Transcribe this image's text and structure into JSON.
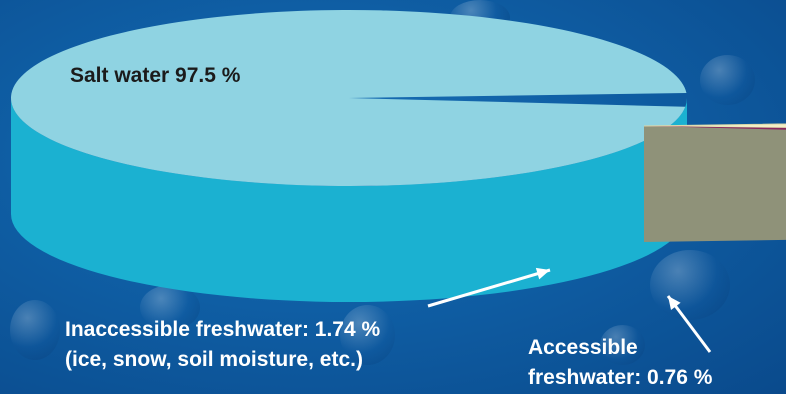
{
  "chart_data": {
    "type": "pie",
    "slices": [
      {
        "label": "Salt water",
        "value": 97.5,
        "unit": "%",
        "color": "#8fd3e2"
      },
      {
        "label": "Inaccessible freshwater",
        "value": 1.74,
        "unit": "%",
        "note": "(ice, snow, soil moisture, etc.)",
        "color": "#f3f0c6"
      },
      {
        "label": "Accessible freshwater",
        "value": 0.76,
        "unit": "%",
        "color": "#8a2a5e"
      }
    ],
    "three_d": true,
    "exploded_slices": [
      "Inaccessible freshwater",
      "Accessible freshwater"
    ]
  },
  "labels": {
    "salt": "Salt water 97.5 %",
    "inaccessible_line1": "Inaccessible freshwater: 1.74 %",
    "inaccessible_line2": "(ice, snow, soil moisture, etc.)",
    "accessible_line1": "Accessible",
    "accessible_line2": "freshwater: 0.76 %"
  },
  "colors": {
    "salt_top": "#8fd3e2",
    "salt_side": "#1bb1d1",
    "inacc_top": "#f3f0c6",
    "inacc_side": "#8f9279",
    "acc_top": "#8a2a5e",
    "acc_side": "#6b1f46",
    "background": "#0f5ea4"
  }
}
